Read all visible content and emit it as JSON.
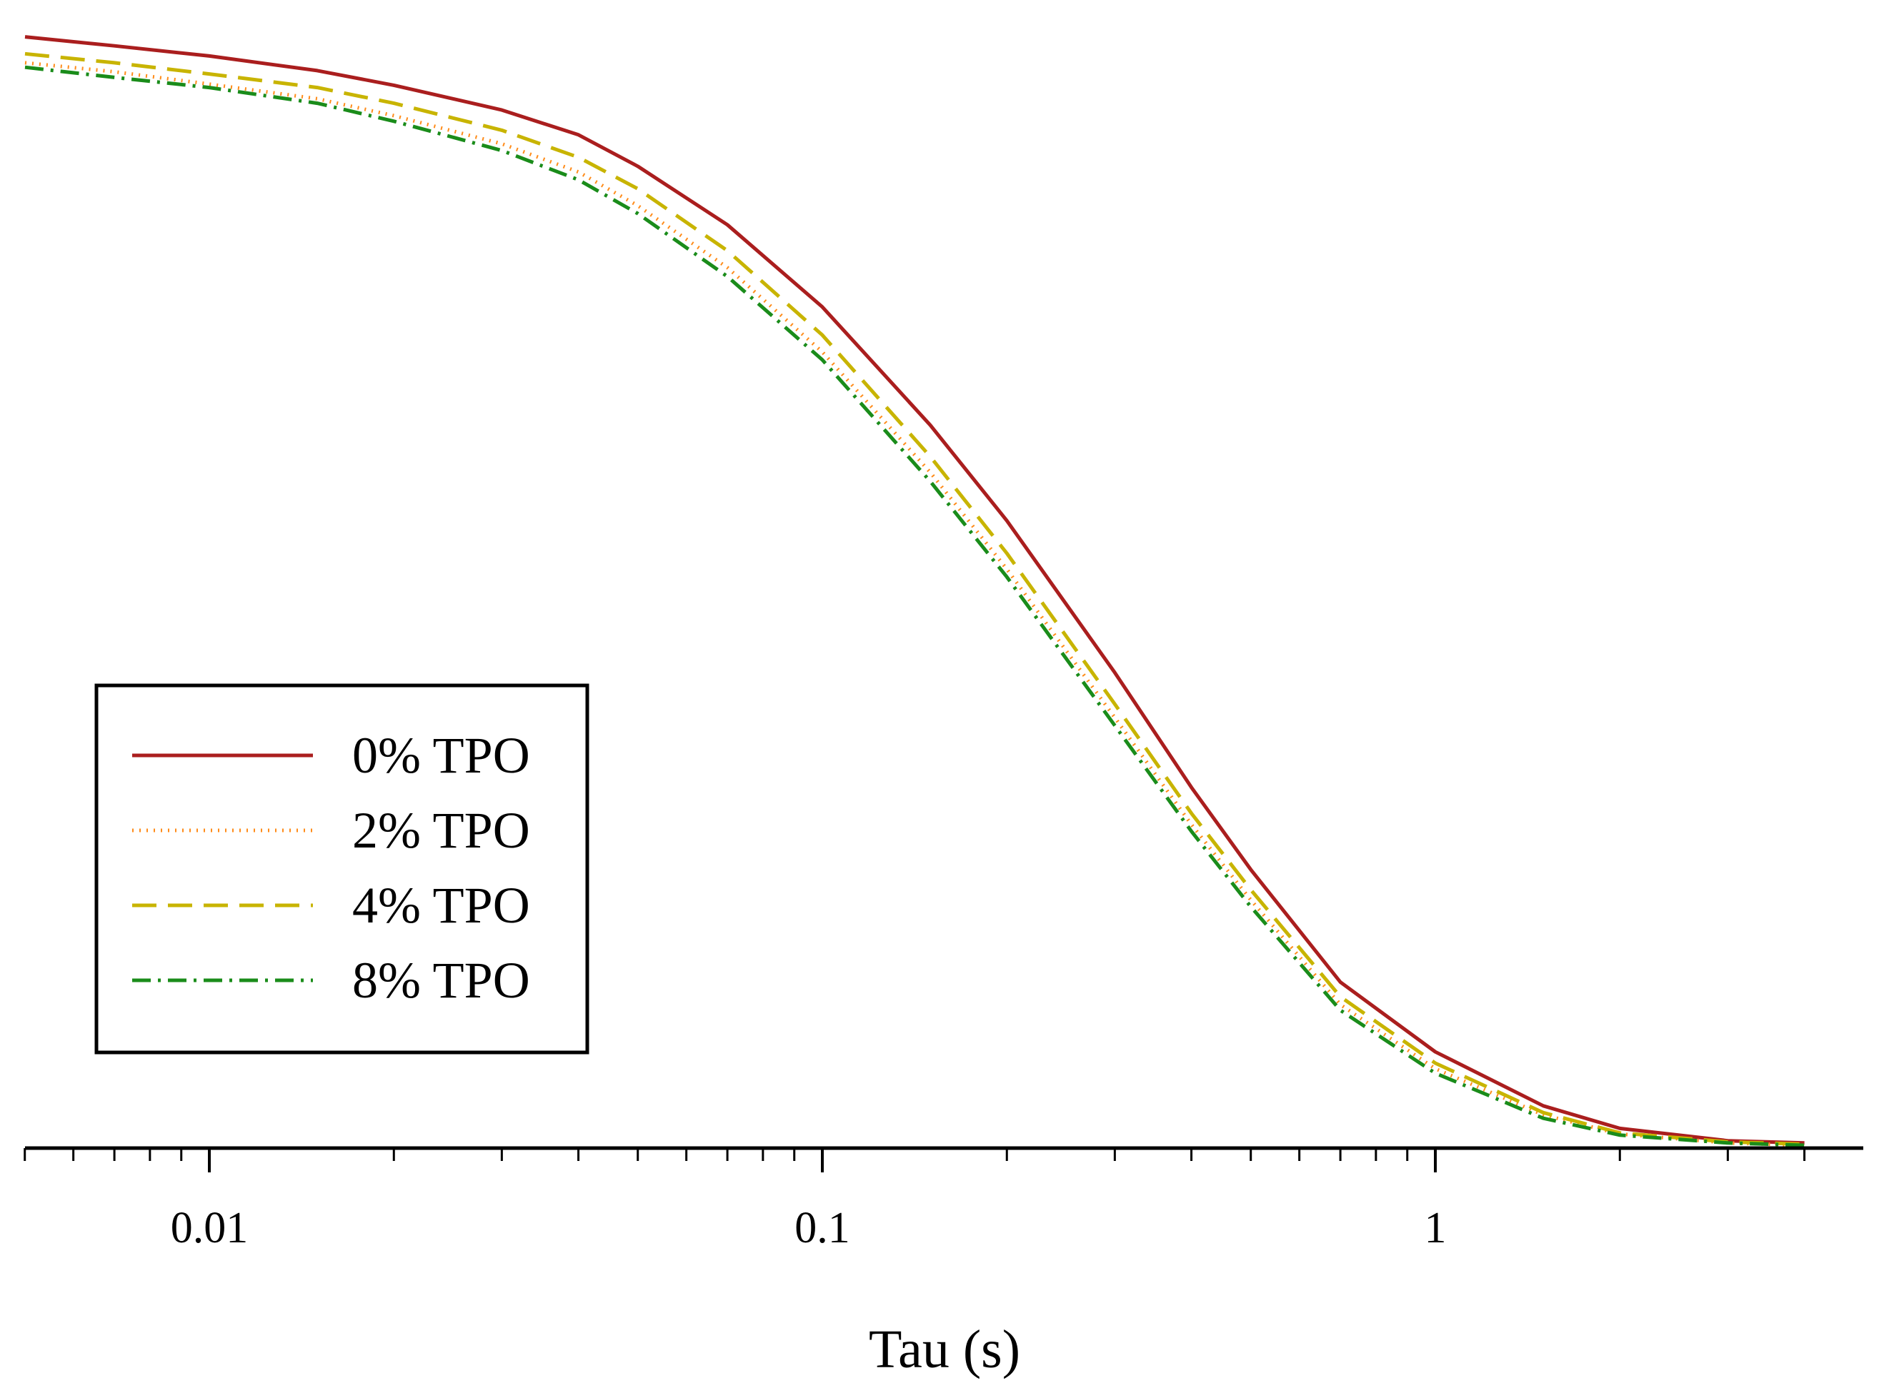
{
  "chart_data": {
    "type": "line",
    "title": "",
    "xlabel": "Tau (s)",
    "ylabel": "",
    "x_scale": "log",
    "xlim": [
      0.005,
      4.0
    ],
    "ylim": [
      0.0,
      1.0
    ],
    "x_ticks": [
      {
        "value": 0.01,
        "label": "0.01"
      },
      {
        "value": 0.1,
        "label": "0.1"
      },
      {
        "value": 1,
        "label": "1"
      }
    ],
    "legend_position": "lower-left",
    "x": [
      0.005,
      0.007,
      0.01,
      0.015,
      0.02,
      0.03,
      0.04,
      0.05,
      0.07,
      0.1,
      0.15,
      0.2,
      0.3,
      0.4,
      0.5,
      0.7,
      1.0,
      1.5,
      2.0,
      3.0,
      4.0
    ],
    "series": [
      {
        "name": "0% TPO",
        "color": "#aa1e1e",
        "dash": "solid",
        "values": [
          0.985,
          0.977,
          0.968,
          0.955,
          0.942,
          0.92,
          0.898,
          0.87,
          0.818,
          0.745,
          0.64,
          0.555,
          0.42,
          0.318,
          0.245,
          0.145,
          0.083,
          0.035,
          0.015,
          0.004,
          0.002
        ]
      },
      {
        "name": "2% TPO",
        "color": "#ff8c1a",
        "dash": "dotted",
        "values": [
          0.962,
          0.954,
          0.943,
          0.93,
          0.915,
          0.89,
          0.865,
          0.835,
          0.78,
          0.705,
          0.598,
          0.512,
          0.38,
          0.285,
          0.218,
          0.125,
          0.068,
          0.027,
          0.01,
          0.002,
          0.0
        ]
      },
      {
        "name": "4% TPO",
        "color": "#c8b400",
        "dash": "dashed",
        "values": [
          0.97,
          0.962,
          0.952,
          0.94,
          0.926,
          0.902,
          0.878,
          0.85,
          0.795,
          0.72,
          0.612,
          0.526,
          0.392,
          0.295,
          0.227,
          0.132,
          0.073,
          0.029,
          0.011,
          0.003,
          0.001
        ]
      },
      {
        "name": "8% TPO",
        "color": "#1a8c1a",
        "dash": "dashdot",
        "values": [
          0.958,
          0.949,
          0.94,
          0.926,
          0.91,
          0.884,
          0.858,
          0.828,
          0.772,
          0.698,
          0.59,
          0.505,
          0.373,
          0.279,
          0.212,
          0.12,
          0.064,
          0.024,
          0.009,
          0.002,
          0.0
        ]
      }
    ]
  }
}
